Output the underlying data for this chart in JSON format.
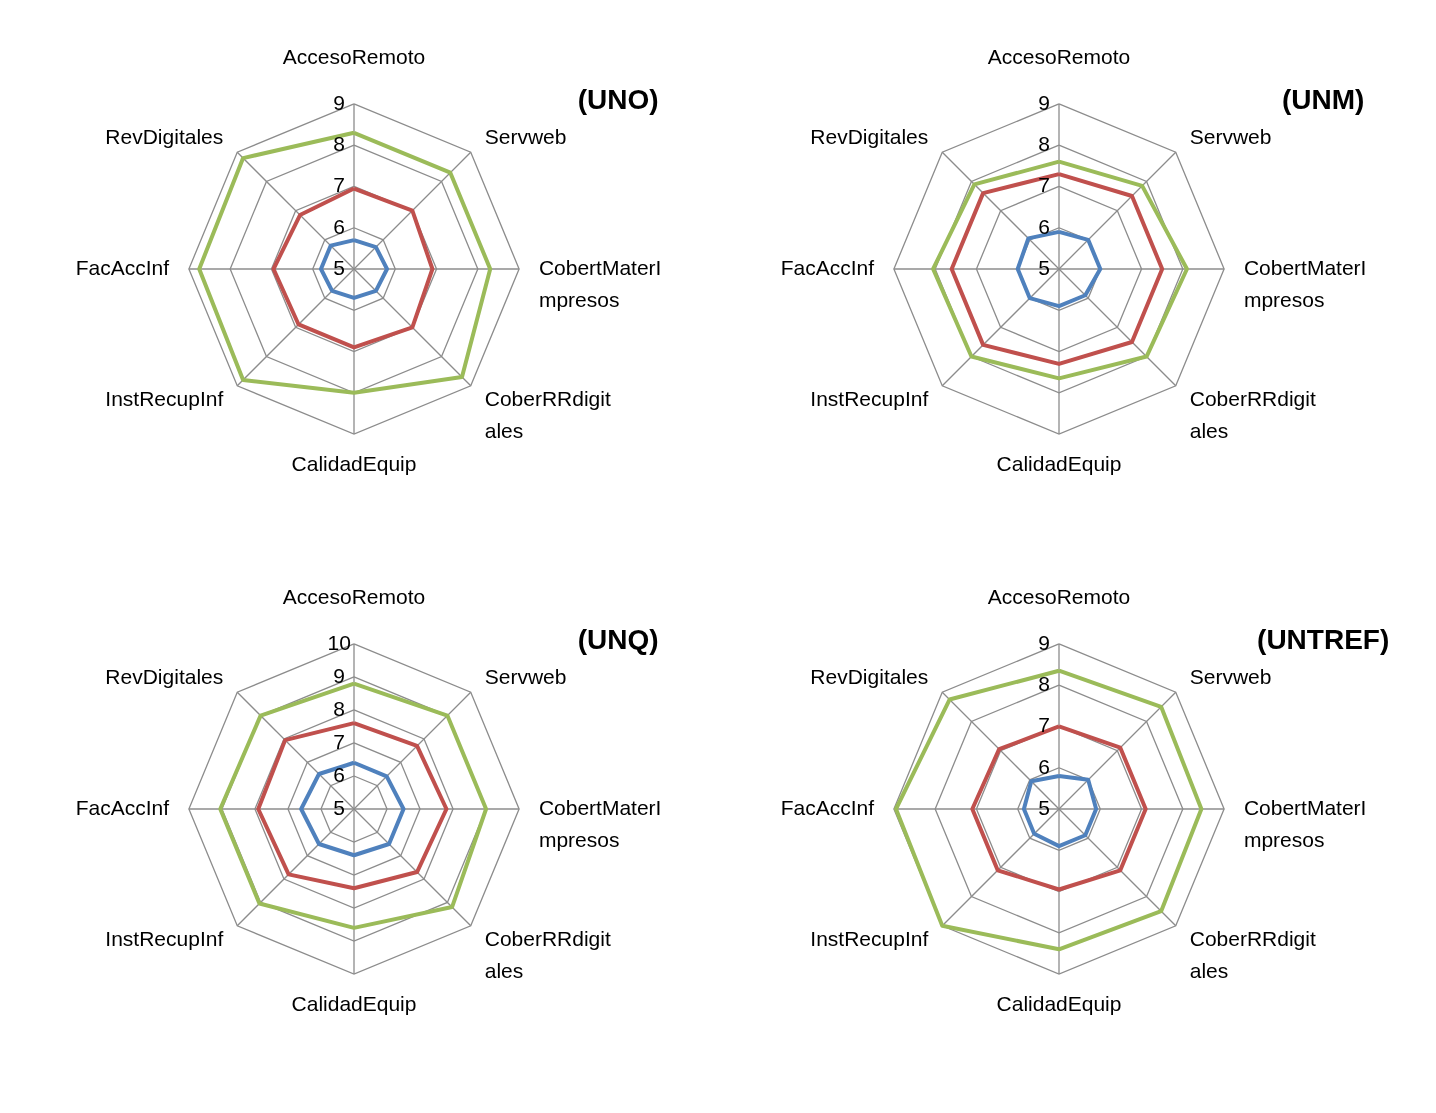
{
  "chart_data": [
    {
      "type": "radar",
      "title": "(UNO)",
      "categories": [
        "AccesoRemoto",
        "Servweb",
        "CobertMaterImpresos",
        "CoberRRdigitales",
        "CalidadEquip",
        "InstRecupInf",
        "FacAccInf",
        "RevDigitales"
      ],
      "ylim": [
        5,
        9
      ],
      "yticks": [
        5,
        6,
        7,
        8,
        9
      ],
      "grid": true,
      "legend": false,
      "series": [
        {
          "color": "#4f81bd",
          "values": [
            5.7,
            5.75,
            5.8,
            5.75,
            5.7,
            5.75,
            5.8,
            5.8
          ]
        },
        {
          "color": "#c0504d",
          "values": [
            6.95,
            7.0,
            6.9,
            7.0,
            6.9,
            6.9,
            6.95,
            6.85
          ]
        },
        {
          "color": "#9bbb59",
          "values": [
            8.3,
            8.3,
            8.3,
            8.7,
            8.0,
            8.8,
            8.75,
            8.8
          ]
        }
      ]
    },
    {
      "type": "radar",
      "title": "(UNM)",
      "categories": [
        "AccesoRemoto",
        "Servweb",
        "CobertMaterImpresos",
        "CoberRRdigitales",
        "CalidadEquip",
        "InstRecupInf",
        "FacAccInf",
        "RevDigitales"
      ],
      "ylim": [
        5,
        9
      ],
      "yticks": [
        5,
        6,
        7,
        8,
        9
      ],
      "grid": true,
      "legend": false,
      "series": [
        {
          "color": "#4f81bd",
          "values": [
            5.9,
            6.0,
            6.0,
            5.9,
            5.9,
            6.0,
            6.0,
            6.05
          ]
        },
        {
          "color": "#c0504d",
          "values": [
            7.3,
            7.5,
            7.5,
            7.5,
            7.3,
            7.6,
            7.6,
            7.6
          ]
        },
        {
          "color": "#9bbb59",
          "values": [
            7.6,
            7.85,
            8.1,
            8.0,
            7.65,
            8.0,
            8.05,
            7.9
          ]
        }
      ]
    },
    {
      "type": "radar",
      "title": "(UNQ)",
      "categories": [
        "AccesoRemoto",
        "Servweb",
        "CobertMaterImpresos",
        "CoberRRdigitales",
        "CalidadEquip",
        "InstRecupInf",
        "FacAccInf",
        "RevDigitales"
      ],
      "ylim": [
        5,
        10
      ],
      "yticks": [
        5,
        6,
        7,
        8,
        9,
        10
      ],
      "grid": true,
      "legend": false,
      "series": [
        {
          "color": "#4f81bd",
          "values": [
            6.4,
            6.4,
            6.5,
            6.5,
            6.4,
            6.5,
            6.6,
            6.5
          ]
        },
        {
          "color": "#c0504d",
          "values": [
            7.6,
            7.7,
            7.8,
            7.7,
            7.4,
            7.8,
            7.9,
            7.95
          ]
        },
        {
          "color": "#9bbb59",
          "values": [
            8.8,
            9.0,
            9.0,
            9.2,
            8.6,
            9.05,
            9.05,
            9.0
          ]
        }
      ]
    },
    {
      "type": "radar",
      "title": "(UNTREF)",
      "categories": [
        "AccesoRemoto",
        "Servweb",
        "CobertMaterImpresos",
        "CoberRRdigitales",
        "CalidadEquip",
        "InstRecupInf",
        "FacAccInf",
        "RevDigitales"
      ],
      "ylim": [
        5,
        9
      ],
      "yticks": [
        5,
        6,
        7,
        8,
        9
      ],
      "grid": true,
      "legend": false,
      "series": [
        {
          "color": "#4f81bd",
          "values": [
            5.8,
            6.0,
            5.9,
            5.9,
            5.9,
            5.85,
            5.85,
            5.95
          ]
        },
        {
          "color": "#c0504d",
          "values": [
            7.0,
            7.1,
            7.1,
            7.1,
            6.95,
            7.1,
            7.1,
            7.05
          ]
        },
        {
          "color": "#9bbb59",
          "values": [
            8.35,
            8.5,
            8.45,
            8.5,
            8.4,
            9.0,
            8.95,
            8.75
          ]
        }
      ]
    }
  ]
}
